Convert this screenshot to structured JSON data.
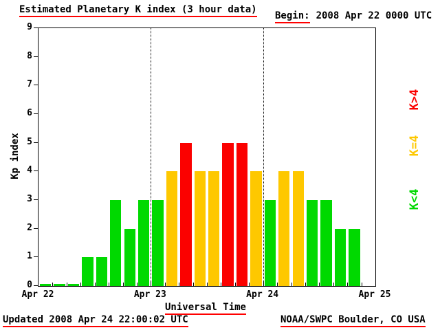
{
  "header": {
    "title": "Estimated Planetary K index (3 hour data)",
    "begin_label": "Begin:",
    "begin_value": "2008 Apr 22 0000 UTC"
  },
  "footer": {
    "updated": "Updated 2008 Apr 24 22:00:02 UTC",
    "source": "NOAA/SWPC Boulder, CO USA"
  },
  "chart_data": {
    "type": "bar",
    "title": "Estimated Planetary K index (3 hour data)",
    "xlabel": "Universal Time",
    "ylabel": "Kp index",
    "ylim": [
      0,
      9
    ],
    "y_ticks": [
      0,
      1,
      2,
      3,
      4,
      5,
      6,
      7,
      8,
      9
    ],
    "x_tick_labels": [
      "Apr 22",
      "Apr 23",
      "Apr 24",
      "Apr 25"
    ],
    "slots_per_day": 8,
    "bar_interval_hours": 3,
    "begin": "2008 Apr 22 0000 UTC",
    "values": [
      0,
      0,
      0,
      1,
      1,
      3,
      2,
      3,
      3,
      4,
      5,
      4,
      4,
      5,
      5,
      4,
      3,
      4,
      4,
      3,
      3,
      2,
      2
    ],
    "colors": {
      "low": "#00d900",
      "mid": "#fec800",
      "high": "#fb0100"
    },
    "color_rule": "green K<4, yellow K=4, red K>4",
    "legend": [
      {
        "label": "K>4",
        "color": "#fb0100"
      },
      {
        "label": "K=4",
        "color": "#fec800"
      },
      {
        "label": "K<4",
        "color": "#00d900"
      }
    ],
    "grid": "dotted vertical lines at day boundaries",
    "legend_position": "right, rotated 90deg"
  }
}
